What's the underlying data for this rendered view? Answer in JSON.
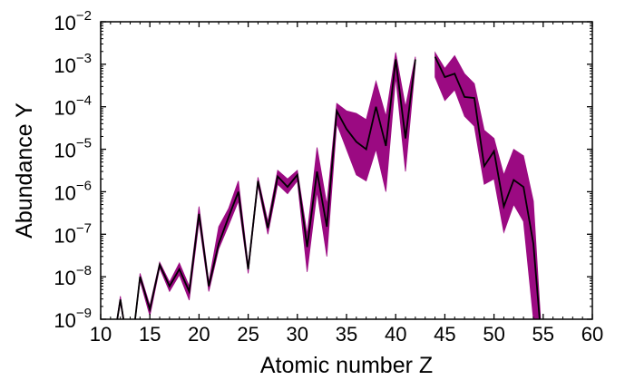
{
  "chart_data": {
    "type": "line",
    "title": "",
    "xlabel": "Atomic number Z",
    "ylabel": "Abundance Y",
    "xlim": [
      10,
      60
    ],
    "ylim": [
      1e-09,
      0.01
    ],
    "yscale": "log",
    "grid": false,
    "x_ticks": [
      "10",
      "15",
      "20",
      "25",
      "30",
      "35",
      "40",
      "45",
      "50",
      "55",
      "60"
    ],
    "y_ticks": [
      {
        "base": "10",
        "exp": "−9"
      },
      {
        "base": "10",
        "exp": "−8"
      },
      {
        "base": "10",
        "exp": "−7"
      },
      {
        "base": "10",
        "exp": "−6"
      },
      {
        "base": "10",
        "exp": "−5"
      },
      {
        "base": "10",
        "exp": "−4"
      },
      {
        "base": "10",
        "exp": "−3"
      },
      {
        "base": "10",
        "exp": "−2"
      }
    ],
    "series": [
      {
        "line_color": "#000000",
        "band_color": "#9b0a82",
        "segments": [
          [
            {
              "x": 11,
              "y": 1e-10,
              "lo": 1e-10,
              "hi": 1e-10
            },
            {
              "x": 12,
              "y": 2.9e-09,
              "lo": 2.4e-09,
              "hi": 3.5e-09
            },
            {
              "x": 13,
              "y": 1e-10,
              "lo": 1e-10,
              "hi": 1e-10
            },
            {
              "x": 14,
              "y": 1e-08,
              "lo": 8e-09,
              "hi": 1.2e-08
            },
            {
              "x": 15,
              "y": 1.7e-09,
              "lo": 1.2e-09,
              "hi": 2.1e-09
            },
            {
              "x": 16,
              "y": 1.9e-08,
              "lo": 1.6e-08,
              "hi": 2.2e-08
            },
            {
              "x": 17,
              "y": 6e-09,
              "lo": 4.5e-09,
              "hi": 7.5e-09
            },
            {
              "x": 18,
              "y": 1.5e-08,
              "lo": 1.1e-08,
              "hi": 2.1e-08
            },
            {
              "x": 19,
              "y": 4.5e-09,
              "lo": 2.8e-09,
              "hi": 6e-09
            },
            {
              "x": 20,
              "y": 3e-07,
              "lo": 2e-07,
              "hi": 4.5e-07
            },
            {
              "x": 21,
              "y": 6e-09,
              "lo": 4.5e-09,
              "hi": 7.5e-09
            },
            {
              "x": 22,
              "y": 6e-08,
              "lo": 4.5e-08,
              "hi": 1.5e-07
            },
            {
              "x": 23,
              "y": 2.5e-07,
              "lo": 1.6e-07,
              "hi": 4e-07
            },
            {
              "x": 24,
              "y": 1e-06,
              "lo": 6e-07,
              "hi": 1.8e-06
            },
            {
              "x": 25,
              "y": 1.5e-08,
              "lo": 1.2e-08,
              "hi": 1.9e-08
            },
            {
              "x": 26,
              "y": 1.8e-06,
              "lo": 1.4e-06,
              "hi": 2.2e-06
            },
            {
              "x": 27,
              "y": 1.4e-07,
              "lo": 1e-07,
              "hi": 2e-07
            },
            {
              "x": 28,
              "y": 2.3e-06,
              "lo": 1.5e-06,
              "hi": 3.2e-06
            },
            {
              "x": 29,
              "y": 1.3e-06,
              "lo": 9e-07,
              "hi": 2e-06
            },
            {
              "x": 30,
              "y": 2.5e-06,
              "lo": 1.8e-06,
              "hi": 3.2e-06
            },
            {
              "x": 31,
              "y": 5e-08,
              "lo": 1.3e-08,
              "hi": 1e-07
            },
            {
              "x": 32,
              "y": 3e-06,
              "lo": 1e-06,
              "hi": 1.1e-05
            },
            {
              "x": 33,
              "y": 1.5e-07,
              "lo": 3e-08,
              "hi": 5e-07
            },
            {
              "x": 34,
              "y": 8e-05,
              "lo": 4e-05,
              "hi": 0.00012
            },
            {
              "x": 35,
              "y": 3e-05,
              "lo": 1e-05,
              "hi": 8e-05
            },
            {
              "x": 36,
              "y": 1.5e-05,
              "lo": 2.5e-06,
              "hi": 7e-05
            },
            {
              "x": 37,
              "y": 1e-05,
              "lo": 1.8e-06,
              "hi": 5e-05
            },
            {
              "x": 38,
              "y": 0.0001,
              "lo": 1e-05,
              "hi": 0.0004
            },
            {
              "x": 39,
              "y": 1.2e-05,
              "lo": 1e-06,
              "hi": 6e-05
            },
            {
              "x": 40,
              "y": 0.0013,
              "lo": 0.0005,
              "hi": 0.0019
            },
            {
              "x": 41,
              "y": 1.8e-05,
              "lo": 3e-06,
              "hi": 0.0001
            },
            {
              "x": 42,
              "y": 0.0013,
              "lo": 0.001,
              "hi": 0.0015
            }
          ],
          [
            {
              "x": 44,
              "y": 0.0015,
              "lo": 0.0005,
              "hi": 0.0019
            },
            {
              "x": 45,
              "y": 0.0005,
              "lo": 0.00014,
              "hi": 0.0008
            },
            {
              "x": 46,
              "y": 0.0006,
              "lo": 0.00025,
              "hi": 0.0016
            },
            {
              "x": 47,
              "y": 0.00017,
              "lo": 6e-05,
              "hi": 0.0006
            },
            {
              "x": 48,
              "y": 0.00016,
              "lo": 3.5e-05,
              "hi": 0.00035
            },
            {
              "x": 49,
              "y": 4e-06,
              "lo": 1.5e-06,
              "hi": 2.8e-05
            },
            {
              "x": 50,
              "y": 9e-06,
              "lo": 2e-06,
              "hi": 1.8e-05
            },
            {
              "x": 51,
              "y": 4.5e-07,
              "lo": 1.1e-07,
              "hi": 2.5e-06
            },
            {
              "x": 52,
              "y": 1.9e-06,
              "lo": 5e-07,
              "hi": 1e-05
            },
            {
              "x": 53,
              "y": 1.3e-06,
              "lo": 2e-07,
              "hi": 7e-06
            },
            {
              "x": 54,
              "y": 6e-08,
              "lo": 1e-09,
              "hi": 6e-07
            },
            {
              "x": 55,
              "y": 1e-10,
              "lo": 1e-10,
              "hi": 1e-10
            }
          ]
        ]
      }
    ]
  }
}
